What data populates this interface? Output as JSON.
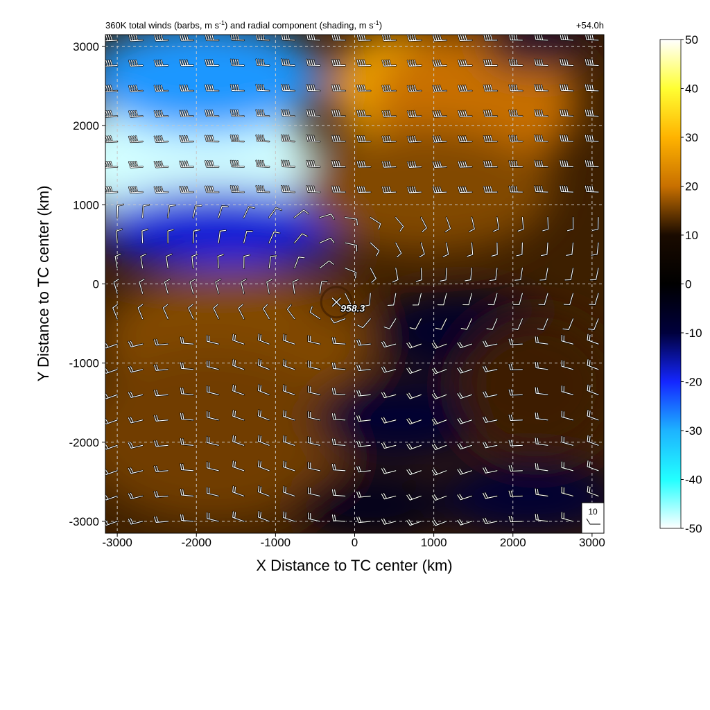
{
  "chart_data": {
    "type": "heatmap",
    "title_parts": {
      "a": "360K total winds (barbs, m s",
      "b": "-1",
      "c": ") and radial component (shading, m s",
      "d": "-1",
      "e": ")"
    },
    "forecast_time": "+54.0h",
    "xlabel": "X Distance to TC center (km)",
    "ylabel": "Y Distance to TC center (km)",
    "xlim": [
      -3150,
      3150
    ],
    "ylim": [
      -3150,
      3150
    ],
    "x_ticks": [
      -3000,
      -2000,
      -1000,
      0,
      1000,
      2000,
      3000
    ],
    "y_ticks": [
      3000,
      2000,
      1000,
      0,
      -1000,
      -2000,
      -3000
    ],
    "grid": true,
    "colorbar": {
      "min": -50,
      "max": 50,
      "ticks": [
        50,
        40,
        30,
        20,
        10,
        0,
        -10,
        -20,
        -30,
        -40,
        -50
      ],
      "colors": [
        "#ffffff",
        "#ffff33",
        "#ffb300",
        "#c87000",
        "#1a0b00",
        "#000000",
        "#00003c",
        "#1426ff",
        "#1db3ff",
        "#22ffff",
        "#ffffff"
      ]
    },
    "center_label": "958.3",
    "center_position_km": [
      -230,
      -230
    ],
    "barb_reference": "10",
    "regions": [
      {
        "cx": -2100,
        "cy": 1550,
        "rx": 1600,
        "ry": 900,
        "value": -48
      },
      {
        "cx": -1900,
        "cy": 2600,
        "rx": 1500,
        "ry": 700,
        "value": -28
      },
      {
        "cx": -1700,
        "cy": 700,
        "rx": 1600,
        "ry": 500,
        "value": -18
      },
      {
        "cx": 600,
        "cy": 2500,
        "rx": 900,
        "ry": 700,
        "value": 28
      },
      {
        "cx": 1500,
        "cy": 2300,
        "rx": 1300,
        "ry": 900,
        "value": 20
      },
      {
        "cx": 900,
        "cy": 1200,
        "rx": 1600,
        "ry": 800,
        "value": 16
      },
      {
        "cx": 2300,
        "cy": 3000,
        "rx": 700,
        "ry": 300,
        "value": -8
      },
      {
        "cx": -1500,
        "cy": -700,
        "rx": 1700,
        "ry": 900,
        "value": 16
      },
      {
        "cx": -1800,
        "cy": -1900,
        "rx": 1700,
        "ry": 1100,
        "value": 15
      },
      {
        "cx": 1400,
        "cy": -600,
        "rx": 1200,
        "ry": 500,
        "value": -7
      },
      {
        "cx": 600,
        "cy": -1700,
        "rx": 1100,
        "ry": 500,
        "value": -8
      },
      {
        "cx": 2300,
        "cy": -1300,
        "rx": 1000,
        "ry": 900,
        "value": 12
      },
      {
        "cx": 2200,
        "cy": -2700,
        "rx": 1200,
        "ry": 450,
        "value": -9
      },
      {
        "cx": 200,
        "cy": -2800,
        "rx": 1000,
        "ry": 400,
        "value": -5
      },
      {
        "cx": -250,
        "cy": -150,
        "rx": 350,
        "ry": 350,
        "value": 14
      }
    ]
  }
}
